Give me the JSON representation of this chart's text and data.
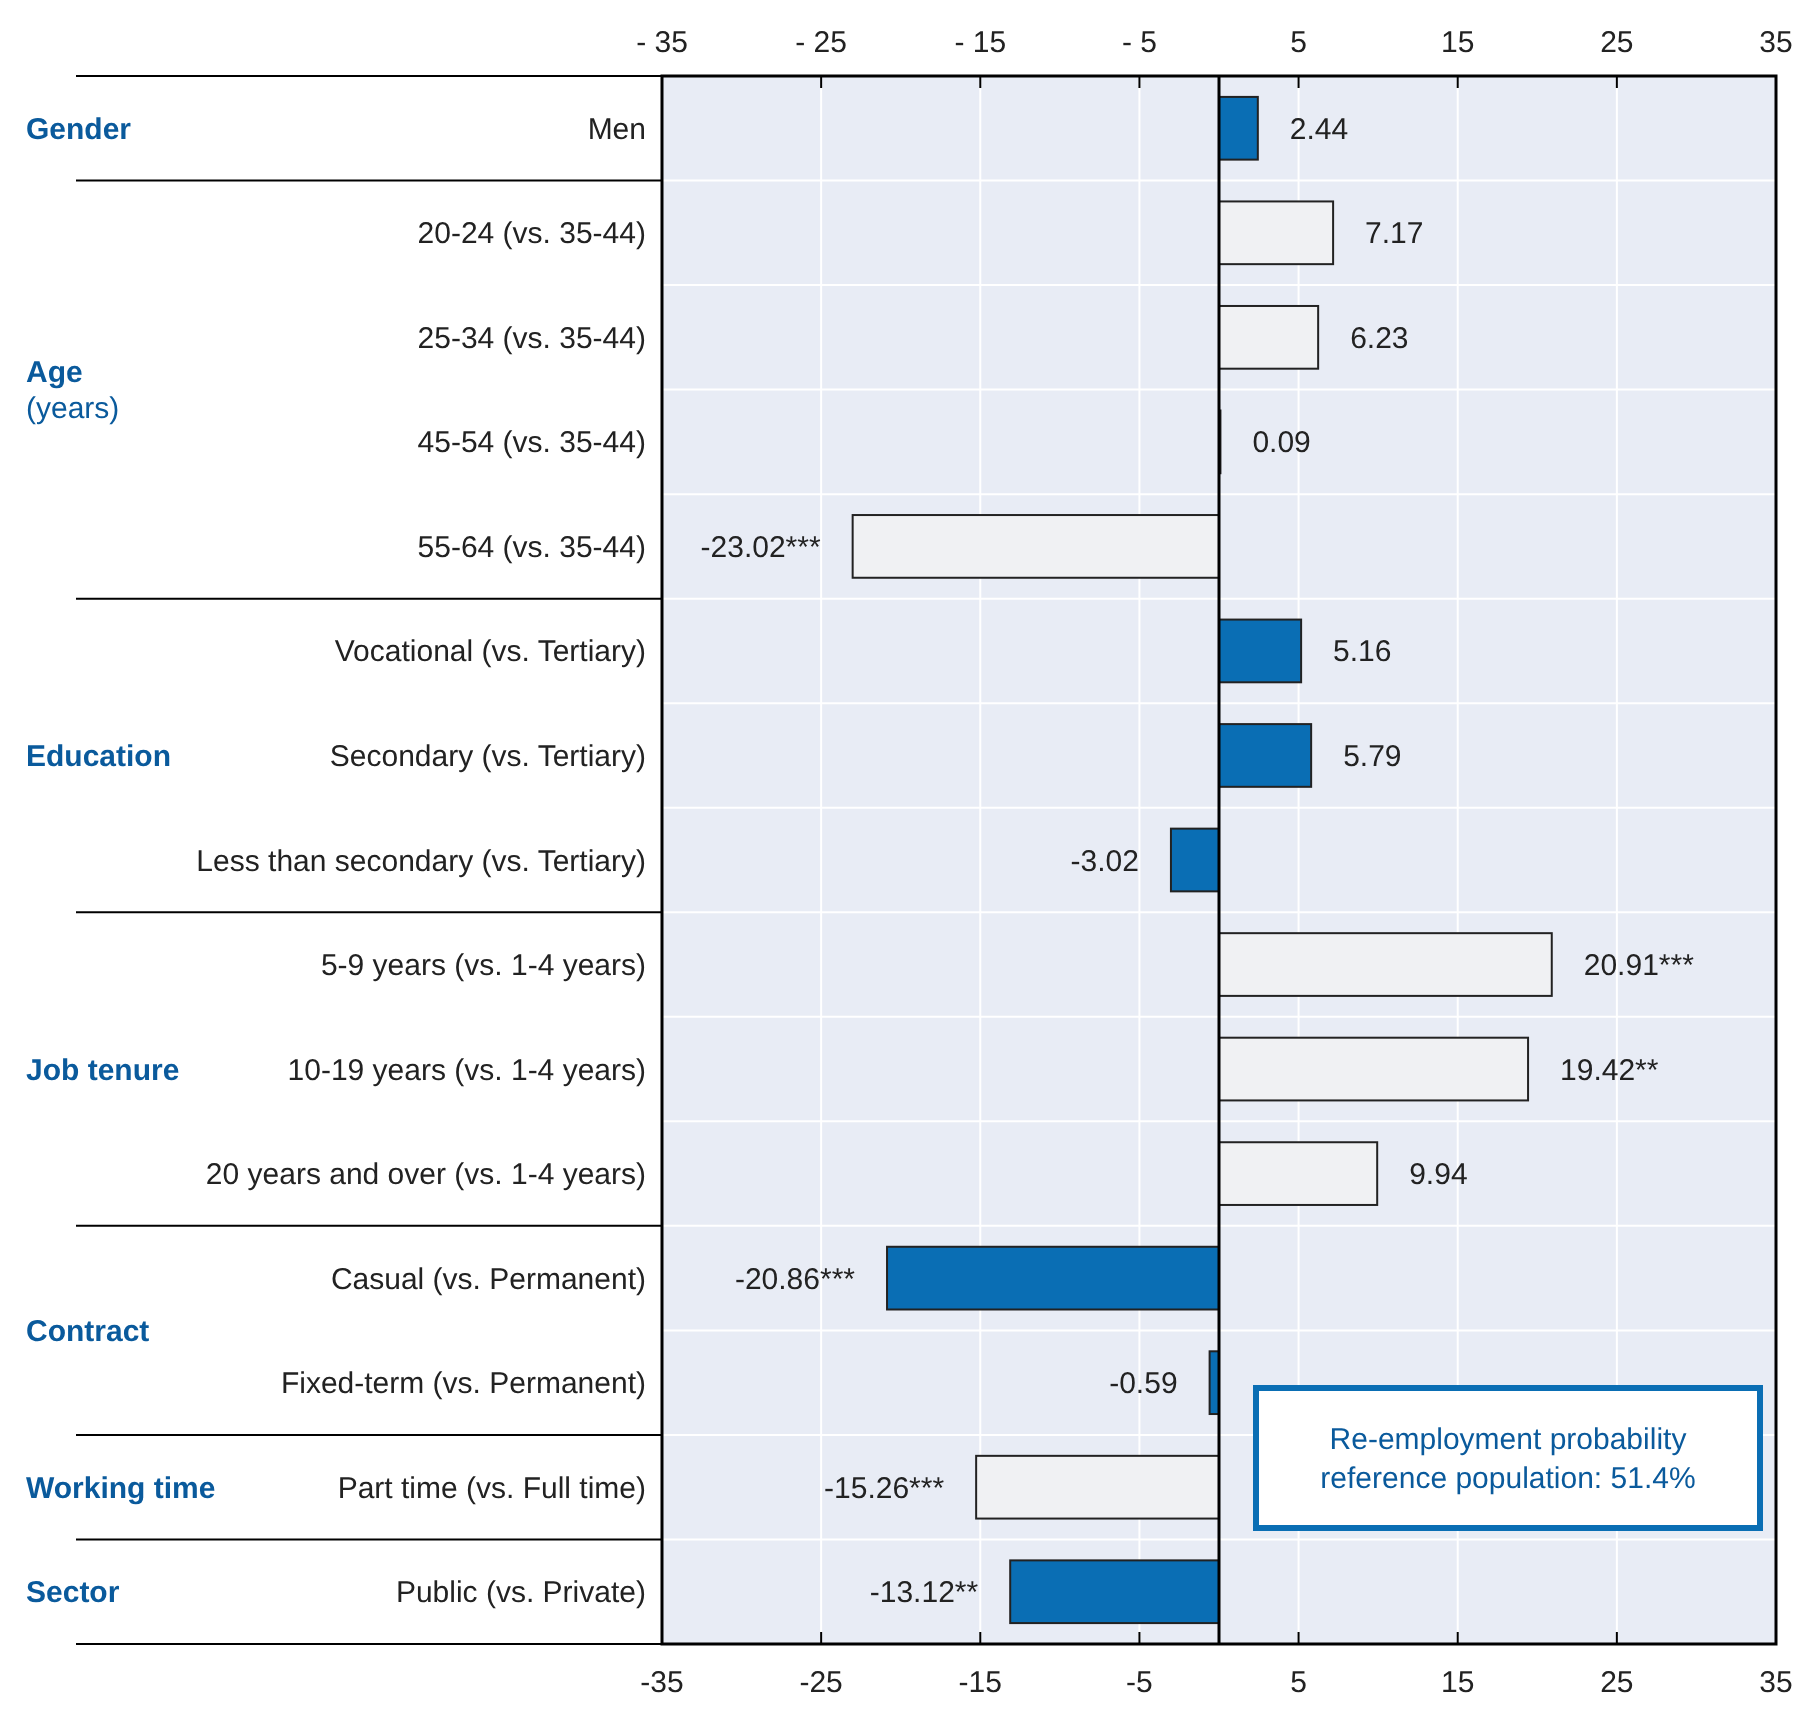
{
  "chart_data": {
    "type": "bar",
    "orientation": "horizontal",
    "categories": [
      "Men",
      "20-24 (vs. 35-44)",
      "25-34 (vs. 35-44)",
      "45-54 (vs. 35-44)",
      "55-64 (vs. 35-44)",
      "Vocational (vs. Tertiary)",
      "Secondary (vs. Tertiary)",
      "Less than secondary (vs. Tertiary)",
      "5-9 years (vs. 1-4 years)",
      "10-19 years (vs. 1-4 years)",
      "20 years and over (vs. 1-4 years)",
      "Casual (vs. Permanent)",
      "Fixed-term (vs. Permanent)",
      "Part time (vs. Full time)",
      "Public (vs. Private)"
    ],
    "values": [
      2.44,
      7.17,
      6.23,
      0.09,
      -23.02,
      5.16,
      5.79,
      -3.02,
      20.91,
      19.42,
      9.94,
      -20.86,
      -0.59,
      -15.26,
      -13.12
    ],
    "value_labels": [
      "2.44",
      "7.17",
      "6.23",
      "0.09",
      "-23.02***",
      "5.16",
      "5.79",
      "-3.02",
      "20.91***",
      "19.42**",
      "9.94",
      "-20.86***",
      "-0.59",
      "-15.26***",
      "-13.12**"
    ],
    "colors": [
      "#0a6eb4",
      "#f0f1f3",
      "#f0f1f3",
      "#f0f1f3",
      "#f0f1f3",
      "#0a6eb4",
      "#0a6eb4",
      "#0a6eb4",
      "#f0f1f3",
      "#f0f1f3",
      "#f0f1f3",
      "#0a6eb4",
      "#0a6eb4",
      "#f0f1f3",
      "#0a6eb4"
    ],
    "xlim": [
      -35,
      35
    ],
    "xticks": [
      -35,
      -25,
      -15,
      -5,
      5,
      15,
      25,
      35
    ],
    "x2lim": [
      -35,
      35
    ],
    "x2ticks": [
      {
        "value": -35,
        "label": "- 35"
      },
      {
        "value": -25,
        "label": "- 25"
      },
      {
        "value": -15,
        "label": "- 15"
      },
      {
        "value": -5,
        "label": "- 5"
      },
      5,
      15,
      25,
      35
    ],
    "grid": true,
    "annotations": [
      "Gender",
      "Age\n(years)",
      "Education",
      "Job tenure",
      "Contract",
      "Working time",
      "Sector",
      "Re-employment probability\nreference population: 51.4%"
    ]
  }
}
